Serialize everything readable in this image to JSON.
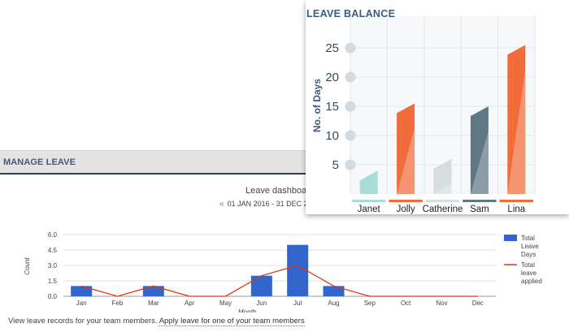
{
  "manage_leave": {
    "title": "MANAGE LEAVE",
    "dashboard_title": "Leave dashboard",
    "date_range": "01 JAN 2016  -  31 DEC 2",
    "footer_text": "View leave records for your team members. ",
    "footer_link": "Apply leave for one of your team members",
    "colors": {
      "bar": "#3366cc",
      "line": "#dc3912",
      "header_border": "#2d3e5c"
    }
  },
  "leave_balance": {
    "title": "LEAVE BALANCE",
    "colors": {
      "title": "#3c5a82"
    }
  },
  "chart_data": [
    {
      "type": "bar",
      "title": "LEAVE BALANCE",
      "xlabel": "",
      "ylabel": "No. of Days",
      "categories": [
        "Janet",
        "Jolly",
        "Catherine",
        "Sam",
        "Lina"
      ],
      "values": [
        4,
        15.5,
        6,
        15,
        25.5
      ],
      "colors": [
        "#a7ddd6",
        "#f26b3a",
        "#d6dde1",
        "#5f7885",
        "#f26b3a"
      ],
      "yticks": [
        5,
        10,
        15,
        20,
        25
      ],
      "ylim": [
        0,
        28
      ],
      "grid": true
    },
    {
      "type": "bar",
      "title": "Leave dashboard",
      "xlabel": "Month",
      "ylabel": "Count",
      "categories": [
        "Jan",
        "Feb",
        "Mar",
        "Apr",
        "May",
        "Jun",
        "Jul",
        "Aug",
        "Sep",
        "Oct",
        "Nov",
        "Dec"
      ],
      "series": [
        {
          "name": "Total Leave Days",
          "kind": "bar",
          "color": "#3366cc",
          "values": [
            1,
            0,
            1,
            0,
            0,
            2,
            5,
            1,
            0,
            0,
            0,
            0
          ]
        },
        {
          "name": "Total leave applied",
          "kind": "line",
          "color": "#dc3912",
          "values": [
            1,
            0,
            1,
            0,
            0,
            2,
            3,
            1,
            0,
            0,
            0,
            0
          ]
        }
      ],
      "yticks": [
        "0.0",
        "1.5",
        "3.0",
        "4.5",
        "6.0"
      ],
      "ylim": [
        0,
        6
      ],
      "grid": true,
      "legend": "right"
    }
  ]
}
